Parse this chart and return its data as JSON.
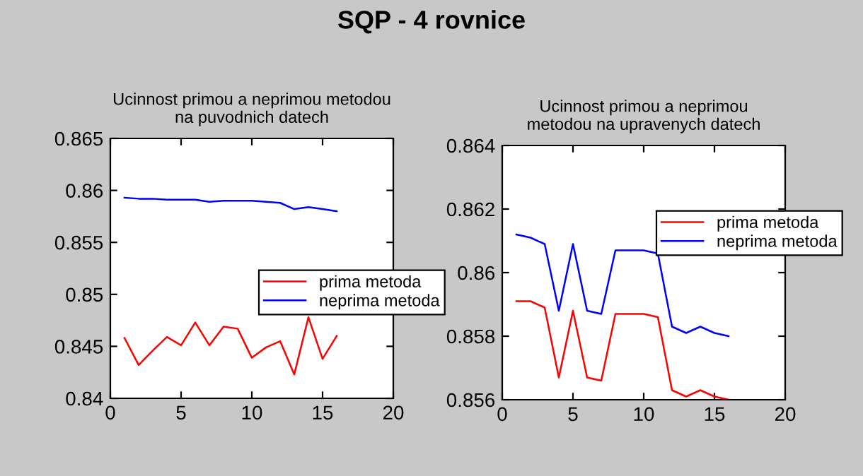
{
  "chart_data": [
    {
      "type": "line",
      "annotations": [
        "SQP - 4 rovnice"
      ],
      "title": "Ucinnost primou a neprimou metodou\nna puvodnich datech",
      "x": [
        1,
        2,
        3,
        4,
        5,
        6,
        7,
        8,
        9,
        10,
        11,
        12,
        13,
        14,
        15,
        16
      ],
      "xlim": [
        0,
        20
      ],
      "xticks": [
        0,
        5,
        10,
        15,
        20
      ],
      "ylim": [
        0.84,
        0.865
      ],
      "yticks": [
        0.84,
        0.845,
        0.85,
        0.855,
        0.86,
        0.865
      ],
      "legend": "right",
      "grid": false,
      "series": [
        {
          "name": "prima metoda",
          "color": "#ff0000",
          "values": [
            0.8458,
            0.8432,
            0.8446,
            0.8459,
            0.8451,
            0.8473,
            0.8451,
            0.8469,
            0.8467,
            0.8439,
            0.8449,
            0.8455,
            0.8423,
            0.8478,
            0.8438,
            0.846
          ]
        },
        {
          "name": "neprima metoda",
          "color": "#0000ff",
          "values": [
            0.8593,
            0.8592,
            0.8592,
            0.8591,
            0.8591,
            0.8591,
            0.8589,
            0.859,
            0.859,
            0.859,
            0.8589,
            0.8588,
            0.8582,
            0.8584,
            0.8582,
            0.858
          ]
        }
      ]
    },
    {
      "type": "line",
      "title": "Ucinnost primou a neprimou\nmetodou na upravenych datech",
      "x": [
        1,
        2,
        3,
        4,
        5,
        6,
        7,
        8,
        9,
        10,
        11,
        12,
        13,
        14,
        15,
        16
      ],
      "xlim": [
        0,
        20
      ],
      "xticks": [
        0,
        5,
        10,
        15,
        20
      ],
      "ylim": [
        0.856,
        0.864
      ],
      "yticks": [
        0.856,
        0.858,
        0.86,
        0.862,
        0.864
      ],
      "legend": "top right",
      "grid": false,
      "series": [
        {
          "name": "prima metoda",
          "color": "#ff0000",
          "values": [
            0.8591,
            0.8591,
            0.8589,
            0.8567,
            0.8588,
            0.8567,
            0.8566,
            0.8587,
            0.8587,
            0.8587,
            0.8586,
            0.8563,
            0.8561,
            0.8563,
            0.8561,
            0.856
          ]
        },
        {
          "name": "neprima metoda",
          "color": "#0000ff",
          "values": [
            0.8612,
            0.8611,
            0.8609,
            0.8588,
            0.8609,
            0.8588,
            0.8587,
            0.8607,
            0.8607,
            0.8607,
            0.8606,
            0.8583,
            0.8581,
            0.8583,
            0.8581,
            0.858
          ]
        }
      ]
    }
  ]
}
